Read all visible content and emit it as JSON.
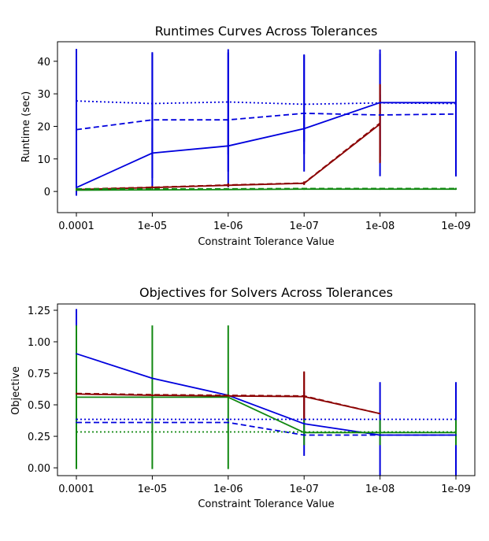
{
  "colors": {
    "blue": "#0000dd",
    "red": "#8b0000",
    "green": "#118811",
    "axis": "#000000"
  },
  "chart_data": [
    {
      "type": "line",
      "title": "Runtimes Curves Across Tolerances",
      "xlabel": "Constraint Tolerance Value",
      "ylabel": "Runtime (sec)",
      "categories": [
        "0.0001",
        "1e-05",
        "1e-06",
        "1e-07",
        "1e-08",
        "1e-09"
      ],
      "ylim": [
        -6.5,
        46
      ],
      "yticks": [
        0,
        10,
        20,
        30,
        40
      ],
      "ytick_labels": [
        "0",
        "10",
        "20",
        "30",
        "40"
      ],
      "series": [
        {
          "color": "#0000dd",
          "style": "dotted",
          "values": [
            27.8,
            27.0,
            27.5,
            26.8,
            27.2,
            27.0
          ],
          "err": [
            16.0,
            15.8,
            16.2,
            15.3,
            16.4,
            16.1
          ]
        },
        {
          "color": "#0000dd",
          "style": "dashed",
          "values": [
            19.0,
            22.0,
            22.0,
            24.0,
            23.5,
            23.8
          ],
          "err": [
            19.8,
            20.5,
            20.7,
            17.9,
            18.8,
            19.2
          ]
        },
        {
          "color": "#0000dd",
          "style": "solid",
          "values": [
            1.2,
            11.8,
            14.0,
            19.3,
            27.3,
            27.3
          ],
          "err": [
            2.5,
            7.7,
            7.9,
            4.0,
            2.5,
            3.0
          ]
        },
        {
          "color": "#8b0000",
          "style": "dashed",
          "values": [
            0.7,
            1.3,
            2.0,
            2.6,
            21.0,
            null
          ],
          "err": [
            0.3,
            0.4,
            0.5,
            0.5,
            12.0,
            null
          ]
        },
        {
          "color": "#8b0000",
          "style": "solid",
          "values": [
            0.6,
            1.2,
            1.9,
            2.5,
            20.7,
            null
          ],
          "err": [
            0.3,
            0.4,
            0.5,
            0.5,
            12.0,
            null
          ]
        },
        {
          "color": "#118811",
          "style": "dashed",
          "values": [
            0.8,
            0.8,
            0.8,
            0.9,
            0.9,
            0.9
          ],
          "err": [
            0.2,
            0.2,
            0.2,
            0.2,
            0.2,
            0.2
          ]
        },
        {
          "color": "#118811",
          "style": "solid",
          "values": [
            0.4,
            0.5,
            0.6,
            0.7,
            0.7,
            0.7
          ],
          "err": [
            0.2,
            0.2,
            0.2,
            0.2,
            0.2,
            0.2
          ]
        }
      ]
    },
    {
      "type": "line",
      "title": "Objectives for Solvers Across Tolerances",
      "xlabel": "Constraint Tolerance Value",
      "ylabel": "Objective",
      "categories": [
        "0.0001",
        "1e-05",
        "1e-06",
        "1e-07",
        "1e-08",
        "1e-09"
      ],
      "ylim": [
        -0.062,
        1.3
      ],
      "yticks": [
        0.0,
        0.25,
        0.5,
        0.75,
        1.0,
        1.25
      ],
      "ytick_labels": [
        "0.00",
        "0.25",
        "0.50",
        "0.75",
        "1.00",
        "1.25"
      ],
      "series": [
        {
          "color": "#0000dd",
          "style": "dotted",
          "values": [
            0.385,
            0.385,
            0.385,
            0.385,
            0.385,
            0.385
          ],
          "err": [
            0.0,
            0.0,
            0.0,
            0.0,
            0.0,
            0.0
          ]
        },
        {
          "color": "#0000dd",
          "style": "dashed",
          "values": [
            0.36,
            0.36,
            0.36,
            0.26,
            0.26,
            0.26
          ],
          "err": [
            0.0,
            0.0,
            0.0,
            0.0,
            0.0,
            0.0
          ]
        },
        {
          "color": "#0000dd",
          "style": "solid",
          "values": [
            0.905,
            0.71,
            0.575,
            0.35,
            0.26,
            0.26
          ],
          "err": [
            0.355,
            0.0,
            0.0,
            0.255,
            0.42,
            0.42
          ]
        },
        {
          "color": "#8b0000",
          "style": "dashed",
          "values": [
            0.59,
            0.58,
            0.575,
            0.57,
            0.43,
            null
          ],
          "err": [
            0.0,
            0.0,
            0.0,
            0.195,
            0.0,
            null
          ]
        },
        {
          "color": "#8b0000",
          "style": "solid",
          "values": [
            0.585,
            0.575,
            0.57,
            0.565,
            0.43,
            null
          ],
          "err": [
            0.0,
            0.0,
            0.0,
            0.195,
            0.0,
            null
          ]
        },
        {
          "color": "#118811",
          "style": "dotted",
          "values": [
            0.285,
            0.285,
            0.285,
            0.285,
            0.285,
            0.285
          ],
          "err": [
            0.0,
            0.0,
            0.0,
            0.0,
            0.0,
            0.0
          ]
        },
        {
          "color": "#118811",
          "style": "solid",
          "values": [
            0.56,
            0.56,
            0.56,
            0.28,
            0.28,
            0.28
          ],
          "err": [
            0.57,
            0.57,
            0.57,
            0.1,
            0.1,
            0.1
          ]
        }
      ]
    }
  ]
}
